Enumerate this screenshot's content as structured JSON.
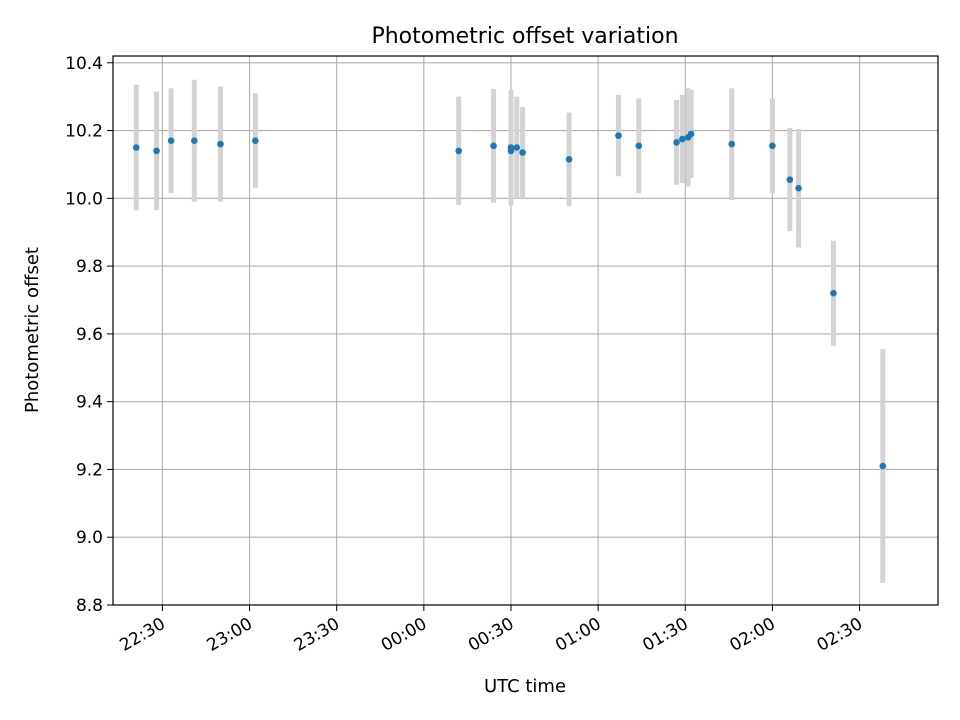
{
  "chart_data": {
    "type": "scatter",
    "title": "Photometric offset variation",
    "xlabel": "UTC time",
    "ylabel": "Photometric offset",
    "ylim": [
      8.8,
      10.42
    ],
    "xlim": [
      "22:13",
      "02:57"
    ],
    "xticks": [
      "22:30",
      "23:00",
      "23:30",
      "00:00",
      "00:30",
      "01:00",
      "01:30",
      "02:00",
      "02:30"
    ],
    "yticks": [
      "8.8",
      "9.0",
      "9.2",
      "9.4",
      "9.6",
      "9.8",
      "10.0",
      "10.2",
      "10.4"
    ],
    "grid": true,
    "point_color": "#1f77b4",
    "errorbar_color": "#d3d3d3",
    "points": [
      {
        "x": "22:21",
        "y": 10.15,
        "err": 0.185
      },
      {
        "x": "22:28",
        "y": 10.14,
        "err": 0.175
      },
      {
        "x": "22:33",
        "y": 10.17,
        "err": 0.155
      },
      {
        "x": "22:41",
        "y": 10.17,
        "err": 0.18
      },
      {
        "x": "22:50",
        "y": 10.16,
        "err": 0.17
      },
      {
        "x": "23:02",
        "y": 10.17,
        "err": 0.14
      },
      {
        "x": "00:12",
        "y": 10.14,
        "err": 0.16
      },
      {
        "x": "00:24",
        "y": 10.155,
        "err": 0.168
      },
      {
        "x": "00:30",
        "y": 10.15,
        "err": 0.17
      },
      {
        "x": "00:30",
        "y": 10.14,
        "err": 0.16
      },
      {
        "x": "00:32",
        "y": 10.15,
        "err": 0.15
      },
      {
        "x": "00:34",
        "y": 10.135,
        "err": 0.135
      },
      {
        "x": "00:50",
        "y": 10.115,
        "err": 0.138
      },
      {
        "x": "01:07",
        "y": 10.185,
        "err": 0.12
      },
      {
        "x": "01:14",
        "y": 10.155,
        "err": 0.14
      },
      {
        "x": "01:27",
        "y": 10.165,
        "err": 0.125
      },
      {
        "x": "01:29",
        "y": 10.175,
        "err": 0.13
      },
      {
        "x": "01:31",
        "y": 10.18,
        "err": 0.145
      },
      {
        "x": "01:32",
        "y": 10.19,
        "err": 0.13
      },
      {
        "x": "01:46",
        "y": 10.16,
        "err": 0.165
      },
      {
        "x": "02:00",
        "y": 10.155,
        "err": 0.14
      },
      {
        "x": "02:06",
        "y": 10.055,
        "err": 0.152
      },
      {
        "x": "02:09",
        "y": 10.03,
        "err": 0.175
      },
      {
        "x": "02:21",
        "y": 9.72,
        "err": 0.155
      },
      {
        "x": "02:38",
        "y": 9.21,
        "err": 0.345
      }
    ]
  }
}
